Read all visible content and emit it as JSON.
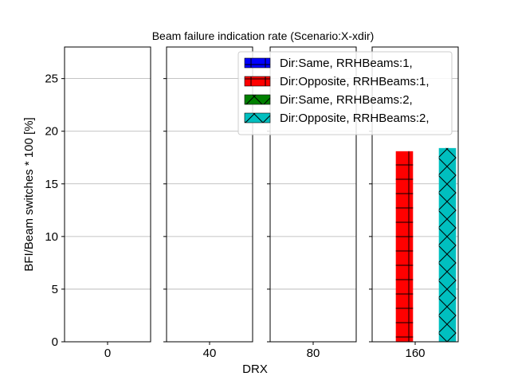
{
  "chart_data": {
    "type": "bar",
    "title": "Beam failure indication rate (Scenario:X-xdir)",
    "xlabel": "DRX",
    "ylabel": "BFI/Beam switches * 100 [%]",
    "ylim": [
      0,
      28
    ],
    "yticks": [
      0,
      5,
      10,
      15,
      20,
      25
    ],
    "grid": "y",
    "legend_position": "top-right",
    "panels": [
      "0",
      "40",
      "80",
      "160"
    ],
    "series": [
      {
        "name": "Dir:Same, RRHBeams:1,",
        "color": "#0000ff",
        "hatch": "plus",
        "values": [
          null,
          null,
          null,
          null
        ]
      },
      {
        "name": "Dir:Opposite, RRHBeams:1,",
        "color": "#ff0000",
        "hatch": "plus",
        "values": [
          null,
          null,
          null,
          18.1
        ]
      },
      {
        "name": "Dir:Same, RRHBeams:2,",
        "color": "#008000",
        "hatch": "x",
        "values": [
          null,
          null,
          null,
          null
        ]
      },
      {
        "name": "Dir:Opposite, RRHBeams:2,",
        "color": "#00bfbf",
        "hatch": "x",
        "values": [
          null,
          null,
          null,
          18.4
        ]
      }
    ]
  }
}
